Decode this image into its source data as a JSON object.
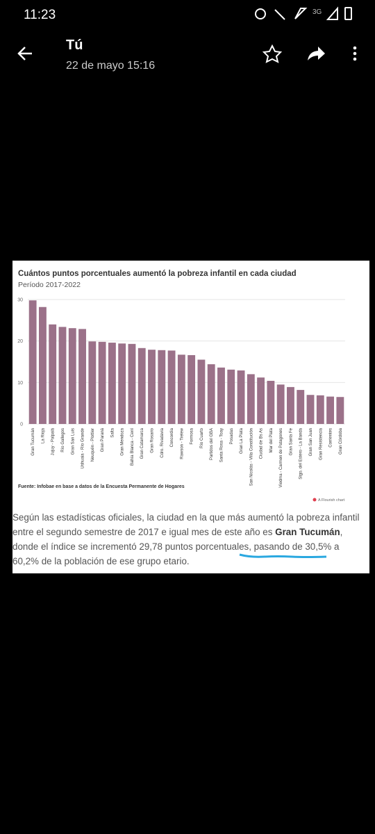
{
  "status_bar": {
    "time": "11:23",
    "network": "3G"
  },
  "header": {
    "title": "Tú",
    "subtitle": "22 de mayo 15:16"
  },
  "chart_data": {
    "type": "bar",
    "title": "Cuántos puntos porcentuales aumentó la pobreza infantil en cada ciudad",
    "subtitle": "Período 2017-2022",
    "categories": [
      "Gran Tucumán",
      "La Rioja",
      "Jujuy - Palpalá",
      "Río Gallegos",
      "Gran San Luis",
      "Ushuaia - Río Grande",
      "Neuquén - Plottier",
      "Gran Paraná",
      "Salta",
      "Gran Mendoza",
      "Bahía Blanca - Cerri",
      "Gran Catamarca",
      "Gran Rosario",
      "Cdro. Rivadavia",
      "Concordia",
      "Rawson - Trelew",
      "Formosa",
      "Río Cuarto",
      "Partidos del GBA",
      "Santa Rosa - Toay",
      "Posadas",
      "Gran La Plata",
      "San Nicolás - Villa Constitución",
      "Ciudad de Bs As",
      "Mar del Plata",
      "Viedma - Carmen de Patagones",
      "Gran Santa Fe",
      "Stgo. del Estero - La Banda",
      "Gran San Juan",
      "Gran Resistencia",
      "Corrientes",
      "Gran Córdoba"
    ],
    "values": [
      29.8,
      28.2,
      24.0,
      23.4,
      23.1,
      22.9,
      19.9,
      19.8,
      19.6,
      19.4,
      19.3,
      18.3,
      17.9,
      17.8,
      17.7,
      16.7,
      16.6,
      15.5,
      14.4,
      13.6,
      13.1,
      12.9,
      12.0,
      11.2,
      10.4,
      9.5,
      8.9,
      8.2,
      7.0,
      6.9,
      6.6,
      6.5
    ],
    "color": "#9b7189",
    "ylim": [
      0,
      30
    ],
    "yticks": [
      0,
      10,
      20,
      30
    ],
    "grid": true,
    "source": "Fuente: Infobae en base a datos de la Encuesta Permanente de Hogares",
    "credit": "A Flourish chart"
  },
  "article": {
    "text_before": "Según las estadísticas oficiales, la ciudad en la que más aumentó la pobreza infantil entre el segundo semestre de 2017 e igual mes de este año es ",
    "bold": "Gran Tucumán",
    "text_after": ", donde el índice se incrementó 29,78 puntos porcentuales, pasando de 30,5% a 60,2% de la población de ese grupo etario."
  }
}
